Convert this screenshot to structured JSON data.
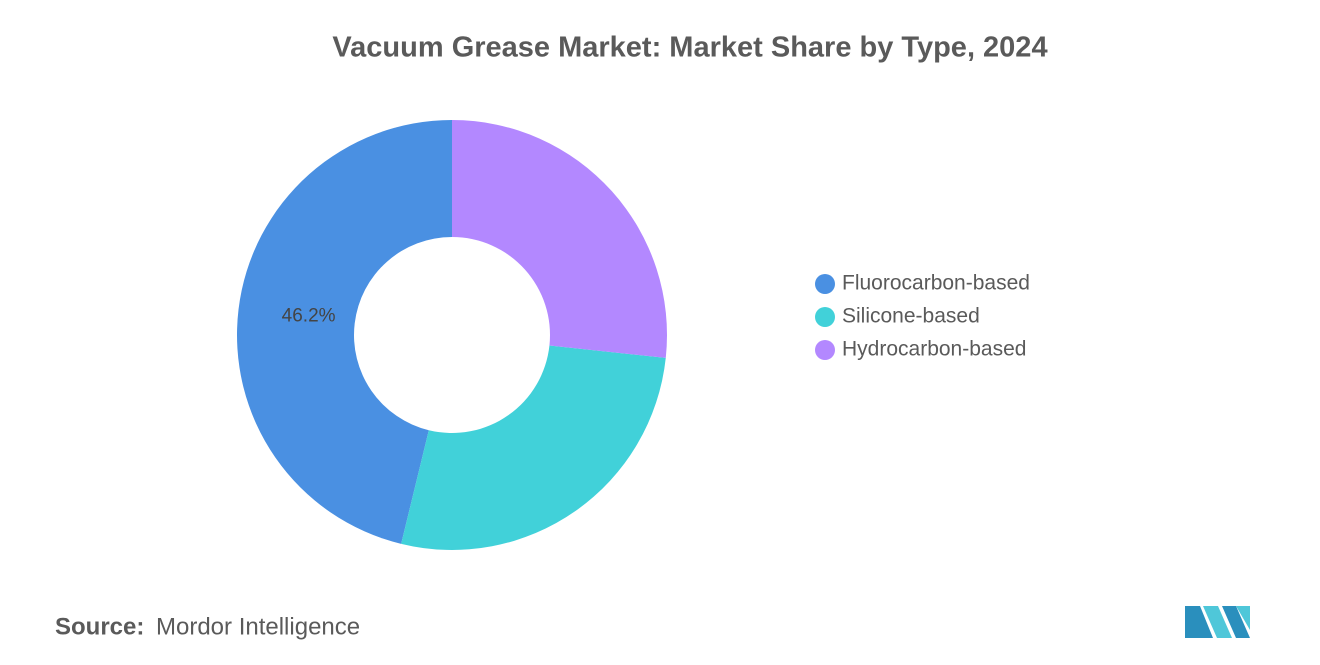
{
  "chart_data": {
    "type": "donut",
    "title": "Vacuum Grease Market: Market Share by Type, 2024",
    "categories": [
      "Fluorocarbon-based",
      "Silicone-based",
      "Hydrocarbon-based"
    ],
    "values": [
      46.2,
      27.1,
      26.7
    ],
    "value_labels": [
      "46.2%",
      null,
      null
    ],
    "colors": [
      "#4a90e2",
      "#41d1d9",
      "#b388ff"
    ],
    "legend": "right",
    "source_label": "Source:",
    "source": "Mordor Intelligence"
  }
}
